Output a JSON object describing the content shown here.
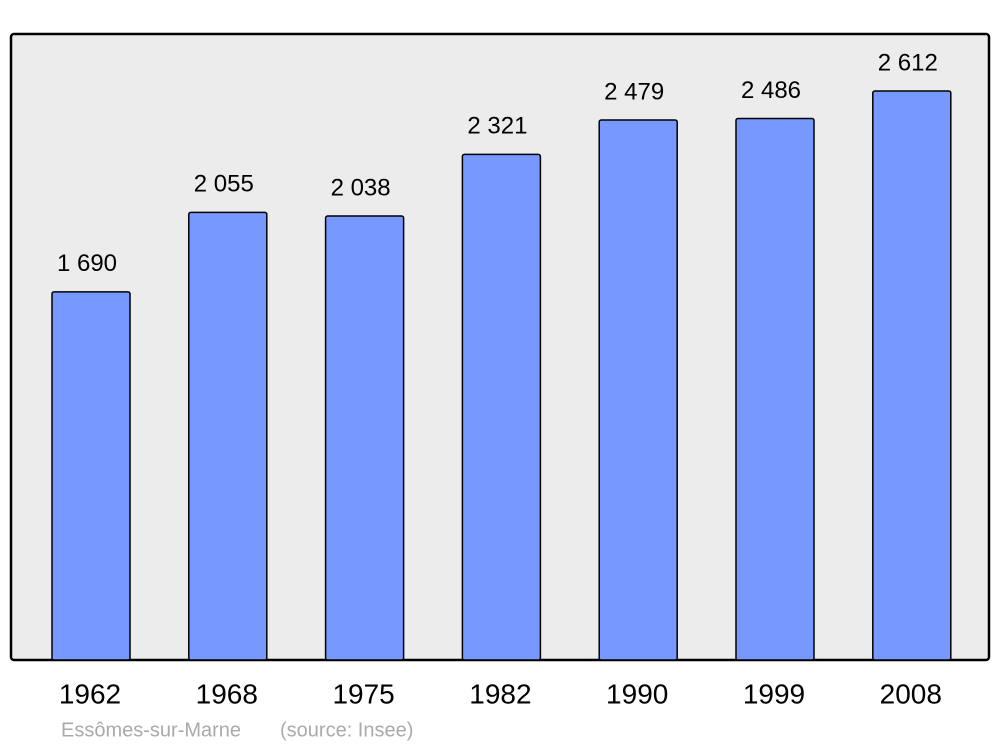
{
  "chart_data": {
    "type": "bar",
    "categories": [
      "1962",
      "1968",
      "1975",
      "1982",
      "1990",
      "1999",
      "2008"
    ],
    "values": [
      1690,
      2055,
      2038,
      2321,
      2479,
      2486,
      2612
    ],
    "value_labels": [
      "1 690",
      "2 055",
      "2 038",
      "2 321",
      "2 479",
      "2 486",
      "2 612"
    ],
    "color": "#7799ff",
    "footer": {
      "place": "Essômes-sur-Marne",
      "source": "(source: Insee)"
    }
  }
}
